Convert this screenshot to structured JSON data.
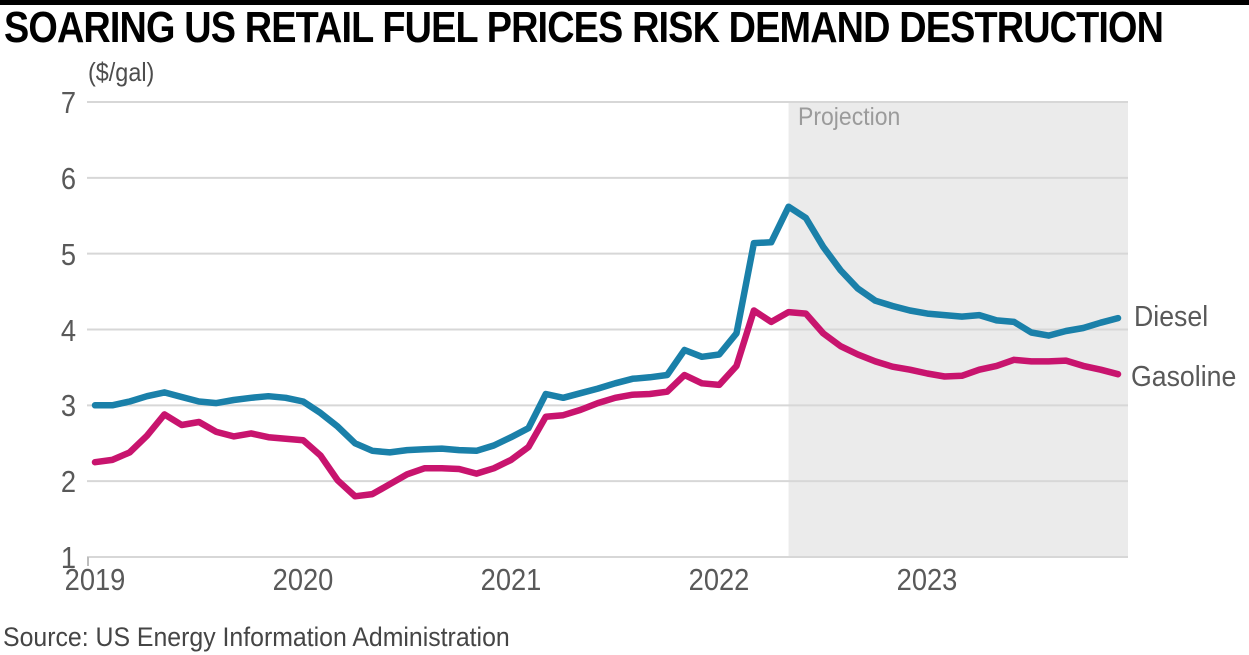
{
  "title": "SOARING US RETAIL FUEL PRICES RISK DEMAND DESTRUCTION",
  "subtitle": "($/gal)",
  "source": "Source: US Energy Information Administration",
  "colors": {
    "diesel": "#1a80a9",
    "gasoline": "#c8146e",
    "projection_band": "#ebebeb",
    "gridline": "#d7d7d7",
    "axis_text": "#595959",
    "title_text": "#000000",
    "projection_label": "#9b9b9b",
    "top_bar": "#000000"
  },
  "chart_data": {
    "type": "line",
    "title": "SOARING US RETAIL FUEL PRICES RISK DEMAND DESTRUCTION",
    "ylabel": "($/gal)",
    "ylim": [
      1,
      7
    ],
    "y_ticks": [
      1,
      2,
      3,
      4,
      5,
      6,
      7
    ],
    "grid": "horizontal",
    "frequency": "monthly",
    "x_start": "2019-01",
    "x_end": "2023-12",
    "x_ticks": [
      {
        "label": "2019",
        "month_index": 0
      },
      {
        "label": "2020",
        "month_index": 12
      },
      {
        "label": "2021",
        "month_index": 24
      },
      {
        "label": "2022",
        "month_index": 36
      },
      {
        "label": "2023",
        "month_index": 48
      }
    ],
    "projection": {
      "label": "Projection",
      "start_month_index": 40,
      "start_month": "2022-05"
    },
    "series": [
      {
        "name": "Diesel",
        "color": "#1a80a9",
        "values": [
          3.0,
          3.0,
          3.05,
          3.12,
          3.17,
          3.11,
          3.05,
          3.03,
          3.07,
          3.1,
          3.12,
          3.1,
          3.05,
          2.9,
          2.72,
          2.5,
          2.4,
          2.38,
          2.41,
          2.42,
          2.43,
          2.41,
          2.4,
          2.47,
          2.58,
          2.7,
          3.15,
          3.1,
          3.16,
          3.22,
          3.29,
          3.35,
          3.37,
          3.4,
          3.73,
          3.64,
          3.67,
          3.95,
          5.14,
          5.15,
          5.62,
          5.47,
          5.09,
          4.78,
          4.54,
          4.38,
          4.31,
          4.25,
          4.21,
          4.19,
          4.17,
          4.19,
          4.12,
          4.1,
          3.96,
          3.92,
          3.98,
          4.02,
          4.09,
          4.15
        ]
      },
      {
        "name": "Gasoline",
        "color": "#c8146e",
        "values": [
          2.25,
          2.28,
          2.38,
          2.6,
          2.88,
          2.74,
          2.78,
          2.65,
          2.59,
          2.63,
          2.58,
          2.56,
          2.54,
          2.34,
          2.01,
          1.8,
          1.83,
          1.96,
          2.09,
          2.17,
          2.17,
          2.16,
          2.1,
          2.17,
          2.28,
          2.45,
          2.85,
          2.87,
          2.94,
          3.03,
          3.1,
          3.14,
          3.15,
          3.18,
          3.4,
          3.29,
          3.27,
          3.52,
          4.25,
          4.1,
          4.23,
          4.21,
          3.95,
          3.78,
          3.67,
          3.58,
          3.51,
          3.47,
          3.42,
          3.38,
          3.39,
          3.47,
          3.52,
          3.6,
          3.58,
          3.58,
          3.59,
          3.52,
          3.47,
          3.41
        ]
      }
    ],
    "legend_position": "right-edge-labels"
  }
}
